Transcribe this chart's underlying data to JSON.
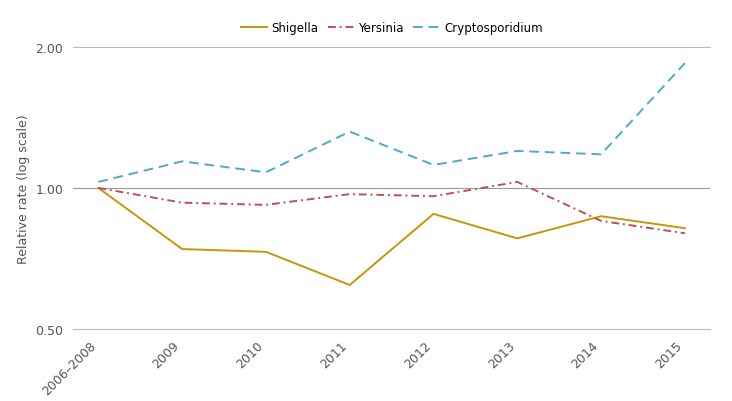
{
  "x_labels": [
    "2006–2008",
    "2009",
    "2010",
    "2011",
    "2012",
    "2013",
    "2014",
    "2015"
  ],
  "x_positions": [
    0,
    1,
    2,
    3,
    4,
    5,
    6,
    7
  ],
  "shigella": [
    1.0,
    0.74,
    0.73,
    0.62,
    0.88,
    0.78,
    0.87,
    0.82
  ],
  "yersinia": [
    1.0,
    0.93,
    0.92,
    0.97,
    0.96,
    1.03,
    0.85,
    0.8
  ],
  "cryptosporidium": [
    1.03,
    1.14,
    1.08,
    1.32,
    1.12,
    1.2,
    1.18,
    1.85
  ],
  "shigella_color": "#C8960C",
  "yersinia_color": "#C0504D",
  "crypto_color": "#4BACC6",
  "ylabel": "Relative rate (log scale)",
  "ylim_low": 0.5,
  "ylim_high": 2.0,
  "legend_labels": [
    "Shigella",
    "Yersinia",
    "Cryptosporidium"
  ],
  "bg_color": "#FFFFFF",
  "spine_color": "#BBBBBB",
  "hline_color": "#999999"
}
